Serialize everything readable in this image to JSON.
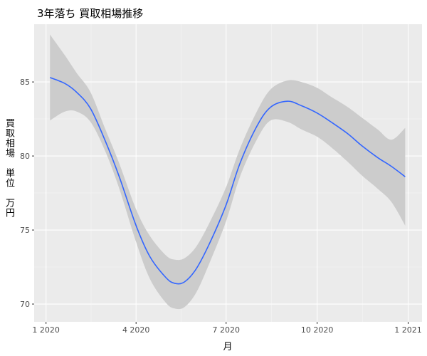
{
  "chart_data": {
    "type": "line",
    "title": "3年落ち 買取相場推移",
    "xlabel": "月",
    "ylabel": "買取相場　単位　万円",
    "x_ticks": [
      "1 2020",
      "4 2020",
      "7 2020",
      "10 2020",
      "1 2021"
    ],
    "y_ticks": [
      70,
      75,
      80,
      85
    ],
    "xlim": [
      "2019-12-20",
      "2021-01-15"
    ],
    "ylim": [
      68.8,
      88.9
    ],
    "grid": true,
    "background": "#ebebeb",
    "line_color": "#3366ff",
    "band_color": "#cccccc",
    "series": [
      {
        "x": [
          "2020-01-05",
          "2020-01-20",
          "2020-02-01",
          "2020-02-15",
          "2020-03-01",
          "2020-03-15",
          "2020-04-01",
          "2020-04-15",
          "2020-05-01",
          "2020-05-10",
          "2020-05-20",
          "2020-06-01",
          "2020-06-15",
          "2020-07-01",
          "2020-07-15",
          "2020-08-01",
          "2020-08-15",
          "2020-09-01",
          "2020-09-15",
          "2020-10-01",
          "2020-10-15",
          "2020-11-01",
          "2020-11-15",
          "2020-12-01",
          "2020-12-15",
          "2020-12-29"
        ],
        "y": [
          85.3,
          84.9,
          84.3,
          83.2,
          81.0,
          78.6,
          75.3,
          73.2,
          71.8,
          71.4,
          71.5,
          72.4,
          74.2,
          76.7,
          79.5,
          82.0,
          83.3,
          83.7,
          83.4,
          82.9,
          82.3,
          81.5,
          80.7,
          79.9,
          79.3,
          78.6
        ],
        "lower": [
          82.4,
          83.0,
          83.0,
          82.3,
          80.3,
          77.8,
          74.2,
          71.7,
          70.1,
          69.7,
          69.8,
          70.8,
          72.9,
          75.6,
          78.6,
          81.1,
          82.4,
          82.3,
          81.8,
          81.3,
          80.6,
          79.6,
          78.7,
          77.8,
          76.9,
          75.3
        ],
        "upper": [
          88.2,
          86.8,
          85.6,
          84.3,
          81.8,
          79.5,
          76.4,
          74.6,
          73.3,
          73.0,
          73.1,
          73.9,
          75.6,
          77.9,
          80.5,
          83.0,
          84.5,
          85.1,
          85.0,
          84.6,
          84.0,
          83.3,
          82.6,
          81.8,
          81.1,
          81.9
        ]
      }
    ]
  }
}
